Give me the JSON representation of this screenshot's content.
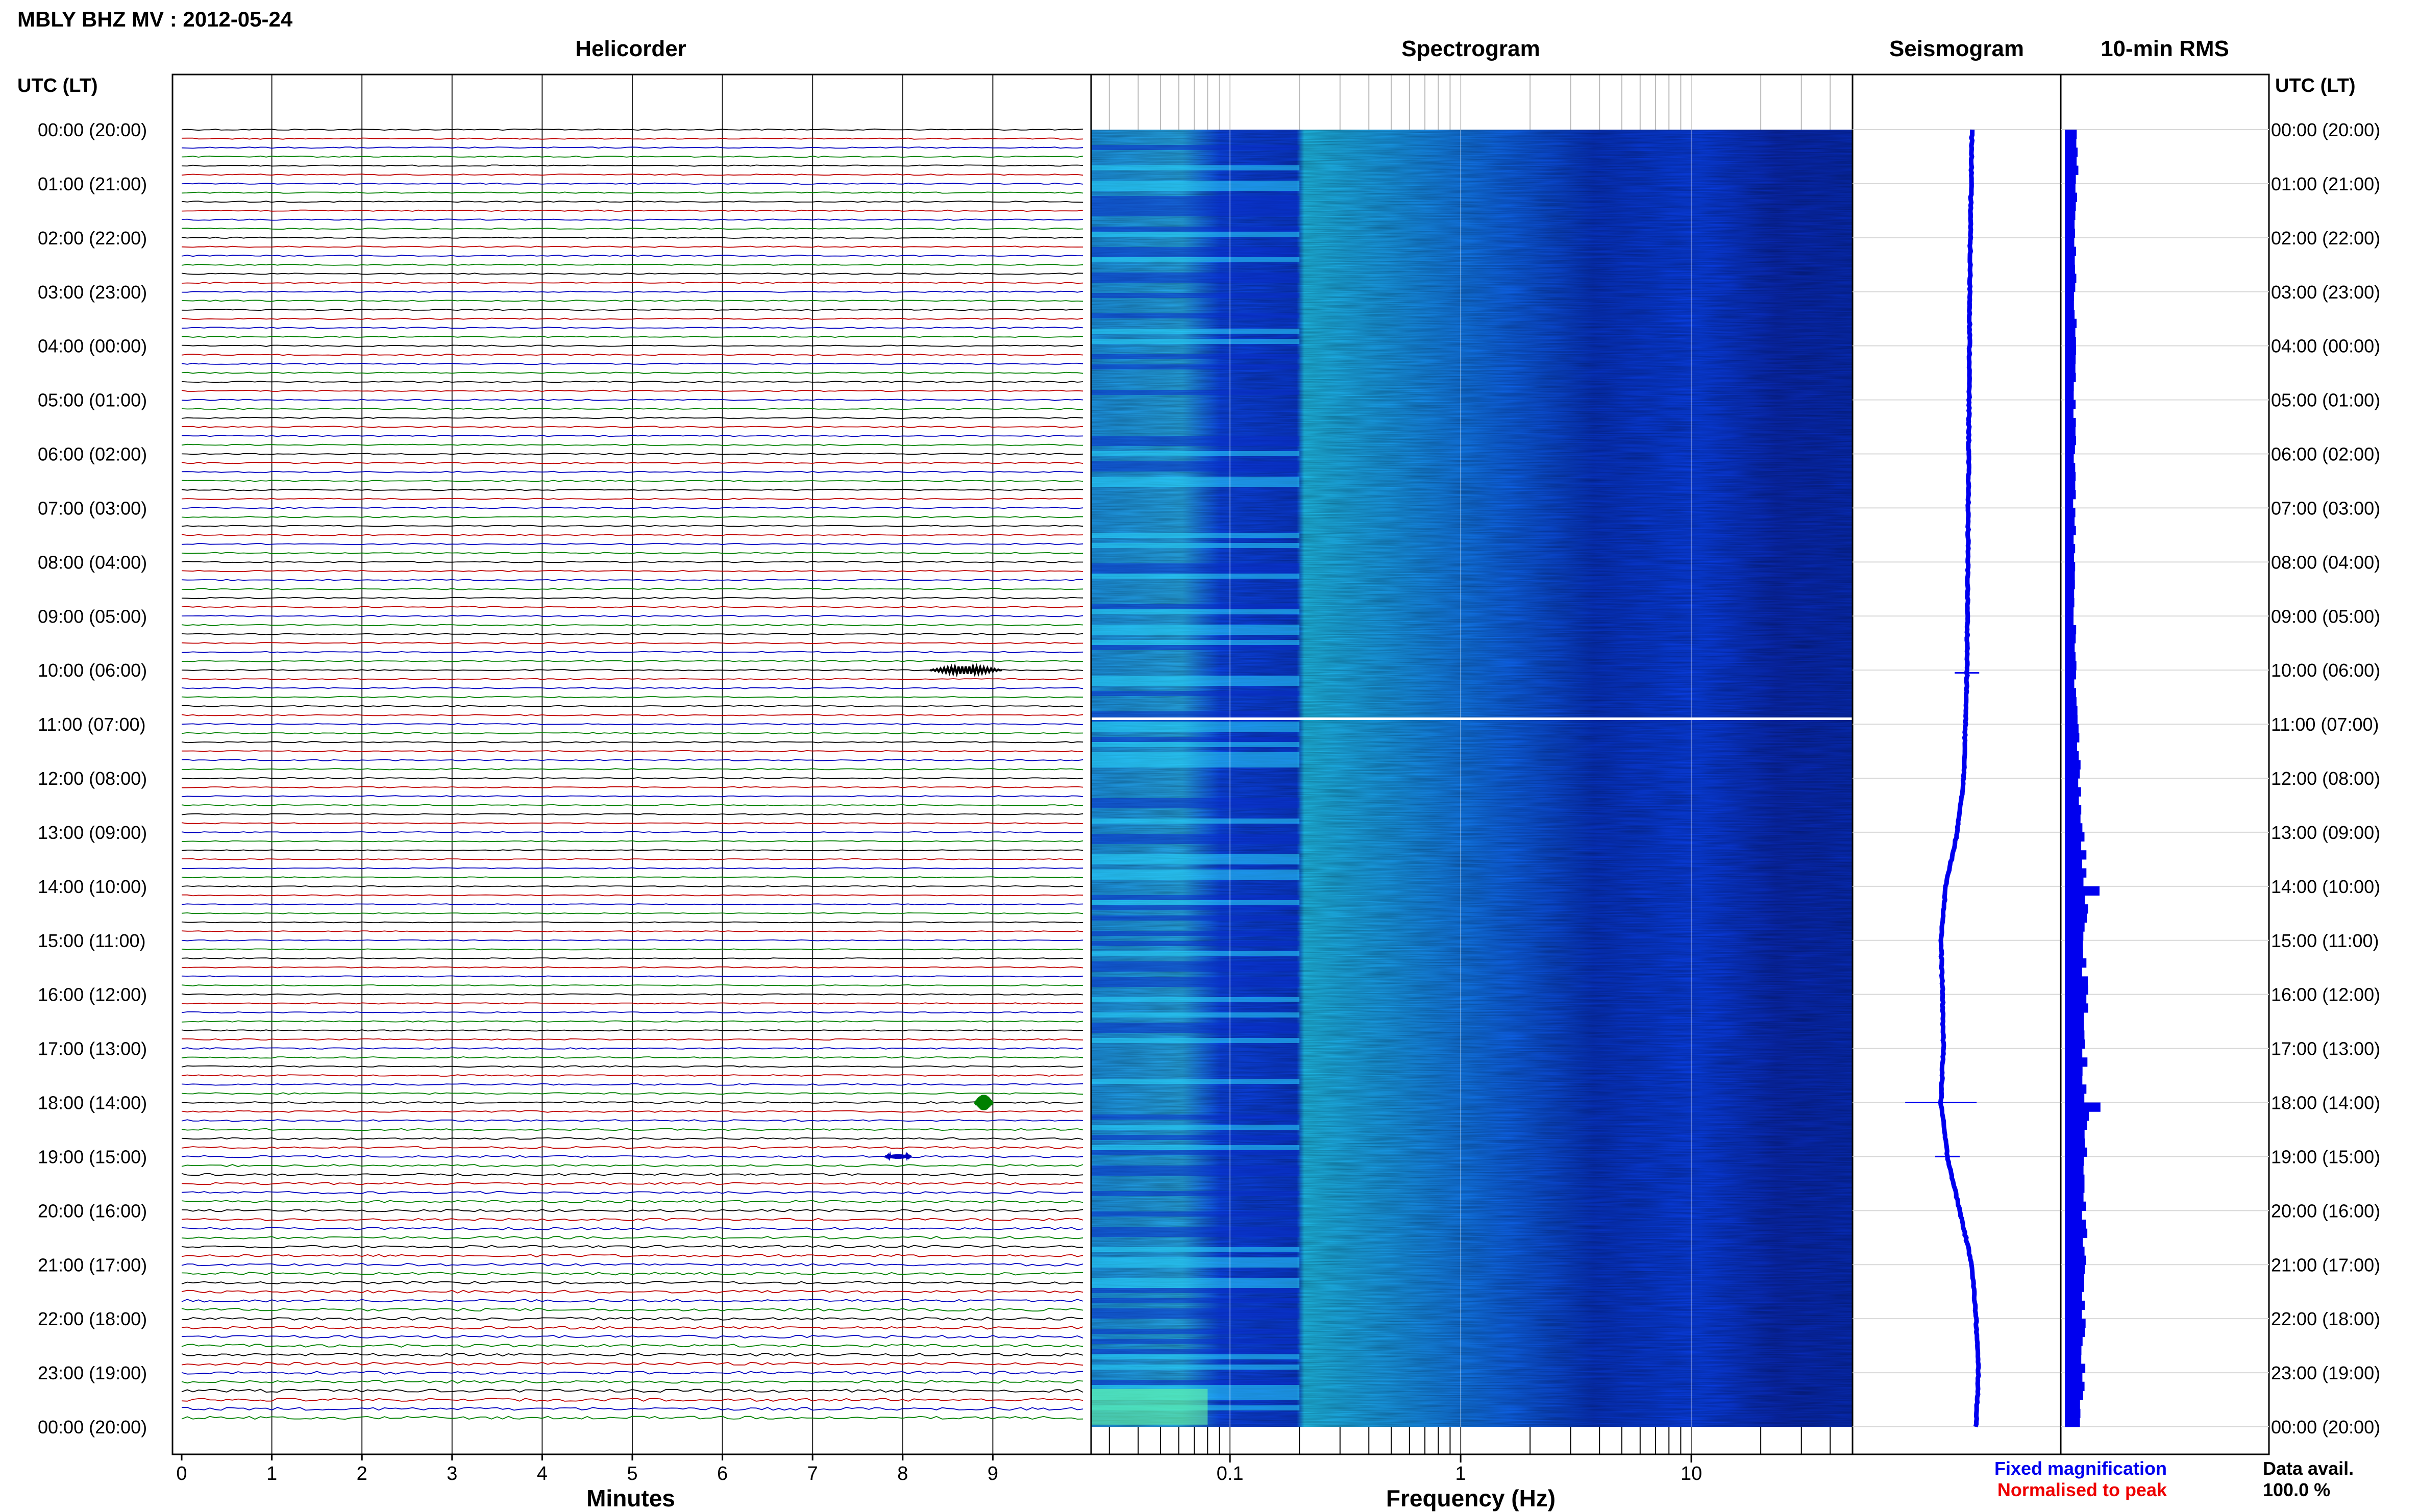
{
  "header": {
    "title": "MBLY BHZ MV : 2012-05-24",
    "helicorder_title": "Helicorder",
    "spectrogram_title": "Spectrogram",
    "seismogram_title": "Seismogram",
    "rms_title": "10-min RMS",
    "utc_label_left": "UTC (LT)",
    "utc_label_right": "UTC (LT)"
  },
  "footer": {
    "minutes_label": "Minutes",
    "frequency_label": "Frequency (Hz)",
    "fixed_magnification": "Fixed magnification",
    "normalised_to_peak": "Normalised to peak",
    "data_avail_label": "Data avail.",
    "data_avail_value": "100.0 %"
  },
  "colors": {
    "helicorder_traces": [
      "#000000",
      "#c00000",
      "#0000c0",
      "#008000"
    ],
    "spectrogram_dark": "#00118a",
    "spectrogram_mid": "#0a3cff",
    "spectrogram_light": "#22d6ff",
    "seismogram_trace": "#0000ee",
    "rms_bars": "#0000ee",
    "fixed_magnification_color": "#0000ee",
    "normalised_color": "#ee0000"
  },
  "chart_data": [
    {
      "type": "line",
      "panel": "helicorder",
      "title": "Helicorder",
      "xlabel": "Minutes",
      "x_ticks": [
        "0",
        "1",
        "2",
        "3",
        "4",
        "5",
        "6",
        "7",
        "8",
        "9"
      ],
      "xlim": [
        0,
        10
      ],
      "trace_count": 144,
      "trace_interval_minutes": 10,
      "y_tick_labels": [
        "00:00 (20:00)",
        "01:00 (21:00)",
        "02:00 (22:00)",
        "03:00 (23:00)",
        "04:00 (00:00)",
        "05:00 (01:00)",
        "06:00 (02:00)",
        "07:00 (03:00)",
        "08:00 (04:00)",
        "09:00 (05:00)",
        "10:00 (06:00)",
        "11:00 (07:00)",
        "12:00 (08:00)",
        "13:00 (09:00)",
        "14:00 (10:00)",
        "15:00 (11:00)",
        "16:00 (12:00)",
        "17:00 (13:00)",
        "18:00 (14:00)",
        "19:00 (15:00)",
        "20:00 (16:00)",
        "21:00 (17:00)",
        "22:00 (18:00)",
        "23:00 (19:00)",
        "00:00 (20:00)"
      ],
      "events": [
        {
          "time_hours": 10.0,
          "minute": 8.3,
          "duration_minutes": 0.8,
          "amplitude": 1.2
        },
        {
          "time_hours": 18.0,
          "minute": 8.8,
          "duration_minutes": 0.2,
          "amplitude": 2.5
        },
        {
          "time_hours": 19.0,
          "minute": 7.8,
          "duration_minutes": 0.3,
          "amplitude": 0.7
        }
      ]
    },
    {
      "type": "heatmap",
      "panel": "spectrogram",
      "title": "Spectrogram",
      "xlabel": "Frequency (Hz)",
      "x_scale": "log",
      "xlim": [
        0.025,
        50
      ],
      "x_tick_labels": [
        "0.1",
        "1",
        "10"
      ],
      "x_tick_values": [
        0.1,
        1,
        10
      ],
      "ylim_hours": [
        0,
        24
      ],
      "gap_at_hours": 10.9
    },
    {
      "type": "line",
      "panel": "seismogram",
      "title": "Seismogram",
      "ylim_hours": [
        0,
        24
      ],
      "drift_hours": [
        0,
        2,
        4,
        6,
        8,
        10,
        12,
        13,
        14,
        15,
        16,
        17,
        18,
        19,
        20,
        21,
        22,
        23,
        24
      ],
      "drift_offset": [
        0.0,
        -0.02,
        -0.03,
        -0.04,
        -0.05,
        -0.06,
        -0.1,
        -0.18,
        -0.32,
        -0.38,
        -0.36,
        -0.35,
        -0.38,
        -0.3,
        -0.15,
        0.0,
        0.05,
        0.08,
        0.05
      ],
      "spikes_hours": [
        10.05,
        18.0,
        19.0
      ]
    },
    {
      "type": "bar",
      "panel": "10-min RMS",
      "title": "10-min RMS",
      "ylim_hours": [
        0,
        24
      ],
      "hours": [
        0,
        1,
        2,
        3,
        4,
        5,
        6,
        7,
        8,
        9,
        10,
        11,
        12,
        13,
        14,
        15,
        16,
        17,
        18,
        19,
        20,
        21,
        22,
        23,
        24
      ],
      "relative_rms": [
        0.35,
        0.32,
        0.3,
        0.3,
        0.28,
        0.28,
        0.28,
        0.27,
        0.27,
        0.28,
        0.3,
        0.35,
        0.42,
        0.5,
        0.58,
        0.55,
        0.58,
        0.55,
        0.6,
        0.55,
        0.55,
        0.55,
        0.52,
        0.5,
        0.45
      ],
      "spikes_hours": [
        18.0,
        14.0
      ]
    }
  ]
}
